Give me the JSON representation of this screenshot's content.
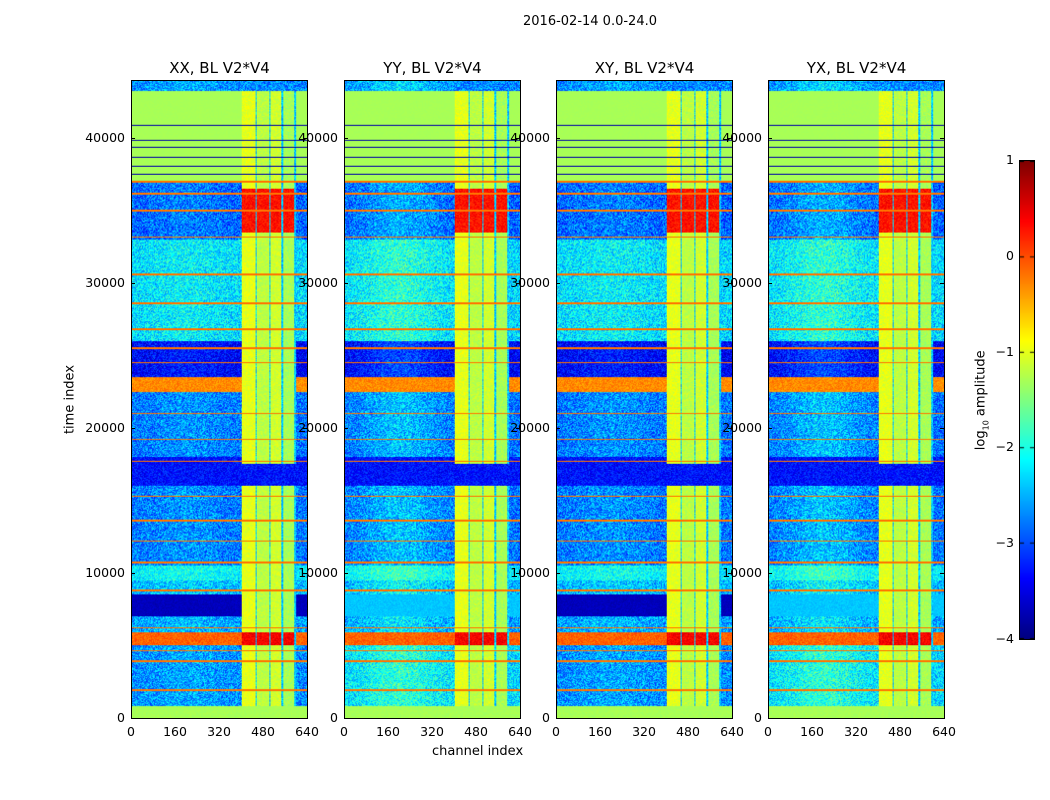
{
  "chart_data": {
    "type": "heatmap",
    "title": "2016-02-14 0.0-24.0",
    "xlabel": "channel index",
    "ylabel": "time index",
    "xlim": [
      0,
      640
    ],
    "ylim": [
      0,
      44000
    ],
    "xticks": [
      "0",
      "160",
      "320",
      "480",
      "640"
    ],
    "xtick_values": [
      0,
      160,
      320,
      480,
      640
    ],
    "yticks": [
      "0",
      "10000",
      "20000",
      "30000",
      "40000"
    ],
    "ytick_values": [
      0,
      10000,
      20000,
      30000,
      40000
    ],
    "panels": [
      {
        "title": "XX, BL V2*V4",
        "overrides": {}
      },
      {
        "title": "YY, BL V2*V4",
        "overrides": {
          "7000": -2.4,
          "800": -2.3
        }
      },
      {
        "title": "XY, BL V2*V4",
        "overrides": {}
      },
      {
        "title": "YX, BL V2*V4",
        "overrides": {
          "7000": -2.4,
          "800": -2.3
        }
      }
    ],
    "bands": [
      [
        0,
        800,
        -1.3,
        0.05
      ],
      [
        800,
        5000,
        -2.7,
        0.5
      ],
      [
        5000,
        5900,
        -0.1,
        0.2
      ],
      [
        5900,
        7000,
        -2.6,
        0.5
      ],
      [
        7000,
        8500,
        -3.7,
        0.1
      ],
      [
        8500,
        9500,
        -2.5,
        0.5
      ],
      [
        9500,
        10500,
        -2.2,
        0.4
      ],
      [
        10500,
        16000,
        -2.8,
        0.5
      ],
      [
        16000,
        18000,
        -3.3,
        0.3
      ],
      [
        18000,
        22500,
        -2.8,
        0.5
      ],
      [
        22500,
        23500,
        -0.3,
        0.2
      ],
      [
        23500,
        26000,
        -3.4,
        0.4
      ],
      [
        26000,
        33000,
        -2.3,
        0.5
      ],
      [
        33000,
        37000,
        -2.9,
        0.5
      ],
      [
        37000,
        43300,
        -1.3,
        0.02
      ],
      [
        43300,
        44000,
        -2.7,
        0.5
      ]
    ],
    "bright_lines": [
      1900,
      3900,
      4600,
      6200,
      8800,
      10700,
      12200,
      13600,
      15300,
      17700,
      19200,
      21000,
      24500,
      25500,
      26800,
      28600,
      30600,
      33200,
      35000,
      36200,
      37000
    ],
    "dark_lines": [
      37520,
      38070,
      38690,
      39380,
      39860,
      40900
    ],
    "rfi_columns": [
      [
        400,
        450,
        -1.0
      ],
      [
        455,
        500,
        -1.2
      ],
      [
        505,
        545,
        -1.1
      ],
      [
        550,
        590,
        -1.3
      ]
    ],
    "rfi_strong": [
      [
        33500,
        36500,
        0.3
      ],
      [
        5000,
        5900,
        0.4
      ]
    ],
    "rfi_gap": [
      16000,
      17500
    ],
    "colorbar": {
      "label": "log10 amplitude",
      "label_base": "log",
      "label_sub": "10",
      "label_rest": " amplitude",
      "range": [
        -4,
        1
      ],
      "ticks": [
        "1",
        "0",
        "−1",
        "−2",
        "−3",
        "−4"
      ],
      "tick_values": [
        1,
        0,
        -1,
        -2,
        -3,
        -4
      ],
      "colormap": "jet"
    }
  }
}
